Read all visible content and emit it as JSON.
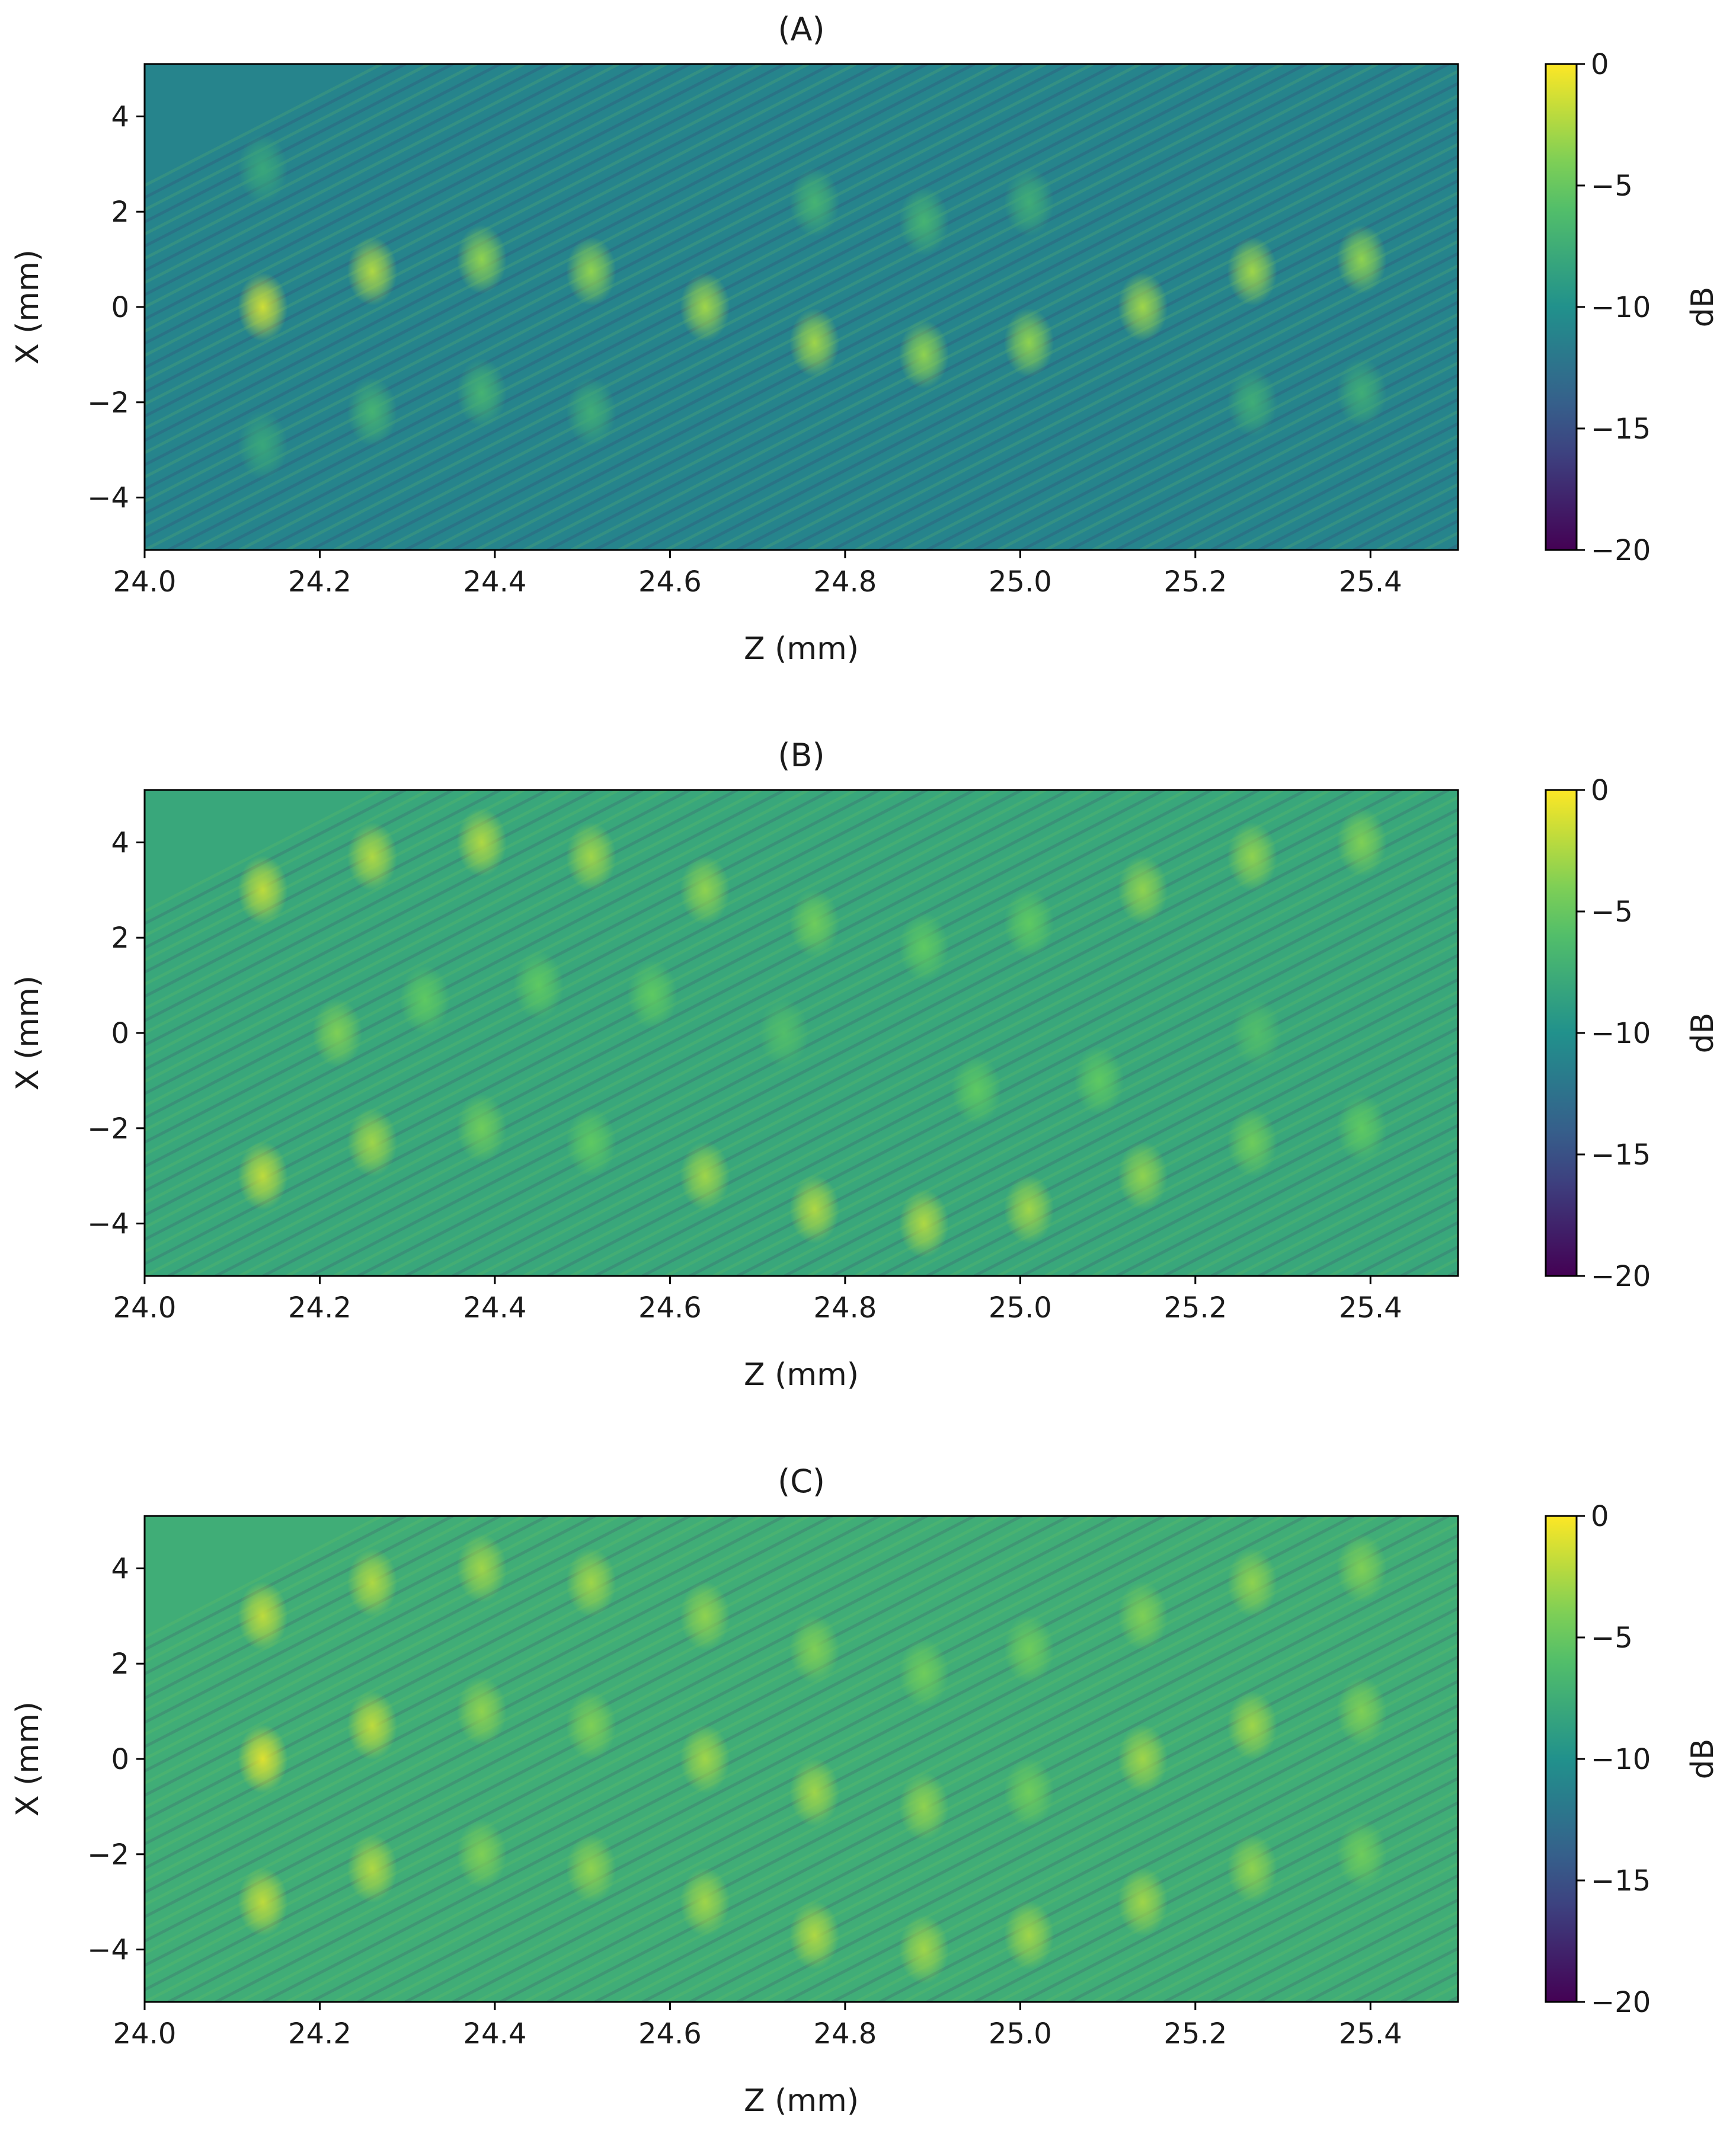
{
  "chart_data": [
    {
      "type": "heatmap",
      "title": "(A)",
      "xlabel": "Z (mm)",
      "ylabel": "X (mm)",
      "xlim": [
        24.0,
        25.5
      ],
      "ylim": [
        -5.1,
        5.1
      ],
      "xticks": [
        24.0,
        24.2,
        24.4,
        24.6,
        24.8,
        25.0,
        25.2,
        25.4
      ],
      "xtick_labels": [
        "24.0",
        "24.2",
        "24.4",
        "24.6",
        "24.8",
        "25.0",
        "25.2",
        "25.4"
      ],
      "yticks": [
        4,
        2,
        0,
        -2,
        -4
      ],
      "ytick_labels": [
        "4",
        "2",
        "0",
        "−2",
        "−4"
      ],
      "colorbar": {
        "label": "dB",
        "range": [
          -20,
          0
        ],
        "colormap": "viridis",
        "ticks": [
          0,
          -5,
          -10,
          -15,
          -20
        ],
        "tick_labels": [
          "0",
          "−5",
          "−10",
          "−15",
          "−20"
        ]
      },
      "background_db": -11,
      "hotspots": [
        {
          "z": 24.135,
          "x": 0.0,
          "db": -1.5
        },
        {
          "z": 24.26,
          "x": 0.75,
          "db": -2.5
        },
        {
          "z": 24.385,
          "x": 1.0,
          "db": -3.5
        },
        {
          "z": 24.51,
          "x": 0.75,
          "db": -3.5
        },
        {
          "z": 24.64,
          "x": 0.0,
          "db": -3
        },
        {
          "z": 24.765,
          "x": -0.75,
          "db": -3
        },
        {
          "z": 24.89,
          "x": -1.0,
          "db": -3.5
        },
        {
          "z": 25.01,
          "x": -0.75,
          "db": -3.5
        },
        {
          "z": 25.14,
          "x": 0.0,
          "db": -3
        },
        {
          "z": 25.265,
          "x": 0.75,
          "db": -3
        },
        {
          "z": 25.39,
          "x": 1.0,
          "db": -3.5
        },
        {
          "z": 24.135,
          "x": 2.9,
          "db": -8
        },
        {
          "z": 24.135,
          "x": -2.9,
          "db": -8
        },
        {
          "z": 24.26,
          "x": -2.2,
          "db": -7
        },
        {
          "z": 24.385,
          "x": -1.8,
          "db": -7
        },
        {
          "z": 24.51,
          "x": -2.2,
          "db": -7.5
        },
        {
          "z": 24.765,
          "x": 2.2,
          "db": -7
        },
        {
          "z": 24.89,
          "x": 1.8,
          "db": -7
        },
        {
          "z": 25.01,
          "x": 2.2,
          "db": -7.5
        },
        {
          "z": 25.265,
          "x": -2.0,
          "db": -7.5
        },
        {
          "z": 25.39,
          "x": -1.8,
          "db": -7.5
        }
      ]
    },
    {
      "type": "heatmap",
      "title": "(B)",
      "xlabel": "Z (mm)",
      "ylabel": "X (mm)",
      "xlim": [
        24.0,
        25.5
      ],
      "ylim": [
        -5.1,
        5.1
      ],
      "xticks": [
        24.0,
        24.2,
        24.4,
        24.6,
        24.8,
        25.0,
        25.2,
        25.4
      ],
      "xtick_labels": [
        "24.0",
        "24.2",
        "24.4",
        "24.6",
        "24.8",
        "25.0",
        "25.2",
        "25.4"
      ],
      "yticks": [
        4,
        2,
        0,
        -2,
        -4
      ],
      "ytick_labels": [
        "4",
        "2",
        "0",
        "−2",
        "−4"
      ],
      "colorbar": {
        "label": "dB",
        "range": [
          -20,
          0
        ],
        "colormap": "viridis",
        "ticks": [
          0,
          -5,
          -10,
          -15,
          -20
        ],
        "tick_labels": [
          "0",
          "−5",
          "−10",
          "−15",
          "−20"
        ]
      },
      "background_db": -8,
      "hotspots": [
        {
          "z": 24.135,
          "x": 3.0,
          "db": -2
        },
        {
          "z": 24.26,
          "x": 3.7,
          "db": -2.5
        },
        {
          "z": 24.385,
          "x": 4.0,
          "db": -2.5
        },
        {
          "z": 24.51,
          "x": 3.7,
          "db": -3
        },
        {
          "z": 24.64,
          "x": 3.0,
          "db": -3.5
        },
        {
          "z": 24.765,
          "x": 2.3,
          "db": -4.5
        },
        {
          "z": 24.89,
          "x": 1.8,
          "db": -5
        },
        {
          "z": 25.01,
          "x": 2.3,
          "db": -5
        },
        {
          "z": 25.14,
          "x": 3.0,
          "db": -3.5
        },
        {
          "z": 25.265,
          "x": 3.7,
          "db": -3.5
        },
        {
          "z": 25.39,
          "x": 4.0,
          "db": -4
        },
        {
          "z": 24.135,
          "x": -3.0,
          "db": -2
        },
        {
          "z": 24.26,
          "x": -2.3,
          "db": -3
        },
        {
          "z": 24.385,
          "x": -2.0,
          "db": -4.5
        },
        {
          "z": 24.51,
          "x": -2.3,
          "db": -5
        },
        {
          "z": 24.64,
          "x": -3.0,
          "db": -3
        },
        {
          "z": 24.765,
          "x": -3.7,
          "db": -2.5
        },
        {
          "z": 24.89,
          "x": -4.0,
          "db": -2.5
        },
        {
          "z": 25.01,
          "x": -3.7,
          "db": -3
        },
        {
          "z": 25.14,
          "x": -3.0,
          "db": -3.5
        },
        {
          "z": 25.265,
          "x": -2.3,
          "db": -4.5
        },
        {
          "z": 25.39,
          "x": -2.0,
          "db": -5
        },
        {
          "z": 24.22,
          "x": 0.0,
          "db": -4
        },
        {
          "z": 24.32,
          "x": 0.7,
          "db": -5
        },
        {
          "z": 24.45,
          "x": 1.0,
          "db": -5
        },
        {
          "z": 24.58,
          "x": 0.8,
          "db": -5
        },
        {
          "z": 24.73,
          "x": 0.0,
          "db": -6
        },
        {
          "z": 24.95,
          "x": -1.2,
          "db": -5
        },
        {
          "z": 25.09,
          "x": -1.0,
          "db": -5
        },
        {
          "z": 25.27,
          "x": 0.0,
          "db": -6
        }
      ]
    },
    {
      "type": "heatmap",
      "title": "(C)",
      "xlabel": "Z (mm)",
      "ylabel": "X (mm)",
      "xlim": [
        24.0,
        25.5
      ],
      "ylim": [
        -5.1,
        5.1
      ],
      "xticks": [
        24.0,
        24.2,
        24.4,
        24.6,
        24.8,
        25.0,
        25.2,
        25.4
      ],
      "xtick_labels": [
        "24.0",
        "24.2",
        "24.4",
        "24.6",
        "24.8",
        "25.0",
        "25.2",
        "25.4"
      ],
      "yticks": [
        4,
        2,
        0,
        -2,
        -4
      ],
      "ytick_labels": [
        "4",
        "2",
        "0",
        "−2",
        "−4"
      ],
      "colorbar": {
        "label": "dB",
        "range": [
          -20,
          0
        ],
        "colormap": "viridis",
        "ticks": [
          0,
          -5,
          -10,
          -15,
          -20
        ],
        "tick_labels": [
          "0",
          "−5",
          "−10",
          "−15",
          "−20"
        ]
      },
      "background_db": -7.5,
      "hotspots": [
        {
          "z": 24.135,
          "x": 3.0,
          "db": -2
        },
        {
          "z": 24.26,
          "x": 3.7,
          "db": -2.5
        },
        {
          "z": 24.385,
          "x": 4.0,
          "db": -3
        },
        {
          "z": 24.51,
          "x": 3.7,
          "db": -3
        },
        {
          "z": 24.64,
          "x": 3.0,
          "db": -3.5
        },
        {
          "z": 24.765,
          "x": 2.3,
          "db": -4
        },
        {
          "z": 24.89,
          "x": 1.8,
          "db": -4.5
        },
        {
          "z": 25.01,
          "x": 2.3,
          "db": -4.5
        },
        {
          "z": 25.14,
          "x": 3.0,
          "db": -4
        },
        {
          "z": 25.265,
          "x": 3.7,
          "db": -3.5
        },
        {
          "z": 25.39,
          "x": 4.0,
          "db": -4
        },
        {
          "z": 24.135,
          "x": 0.0,
          "db": -1
        },
        {
          "z": 24.26,
          "x": 0.7,
          "db": -2
        },
        {
          "z": 24.385,
          "x": 1.0,
          "db": -3.5
        },
        {
          "z": 24.51,
          "x": 0.7,
          "db": -4
        },
        {
          "z": 24.64,
          "x": 0.0,
          "db": -3
        },
        {
          "z": 24.765,
          "x": -0.7,
          "db": -3
        },
        {
          "z": 24.89,
          "x": -1.0,
          "db": -3.5
        },
        {
          "z": 25.01,
          "x": -0.7,
          "db": -4.5
        },
        {
          "z": 25.14,
          "x": 0.0,
          "db": -3
        },
        {
          "z": 25.265,
          "x": 0.7,
          "db": -3
        },
        {
          "z": 25.39,
          "x": 1.0,
          "db": -4
        },
        {
          "z": 24.135,
          "x": -3.0,
          "db": -2
        },
        {
          "z": 24.26,
          "x": -2.3,
          "db": -2.5
        },
        {
          "z": 24.385,
          "x": -2.0,
          "db": -4
        },
        {
          "z": 24.51,
          "x": -2.3,
          "db": -3.5
        },
        {
          "z": 24.64,
          "x": -3.0,
          "db": -3
        },
        {
          "z": 24.765,
          "x": -3.7,
          "db": -2.5
        },
        {
          "z": 24.89,
          "x": -4.0,
          "db": -3
        },
        {
          "z": 25.01,
          "x": -3.7,
          "db": -3
        },
        {
          "z": 25.14,
          "x": -3.0,
          "db": -3
        },
        {
          "z": 25.265,
          "x": -2.3,
          "db": -3.5
        },
        {
          "z": 25.39,
          "x": -2.0,
          "db": -4.5
        }
      ]
    }
  ]
}
